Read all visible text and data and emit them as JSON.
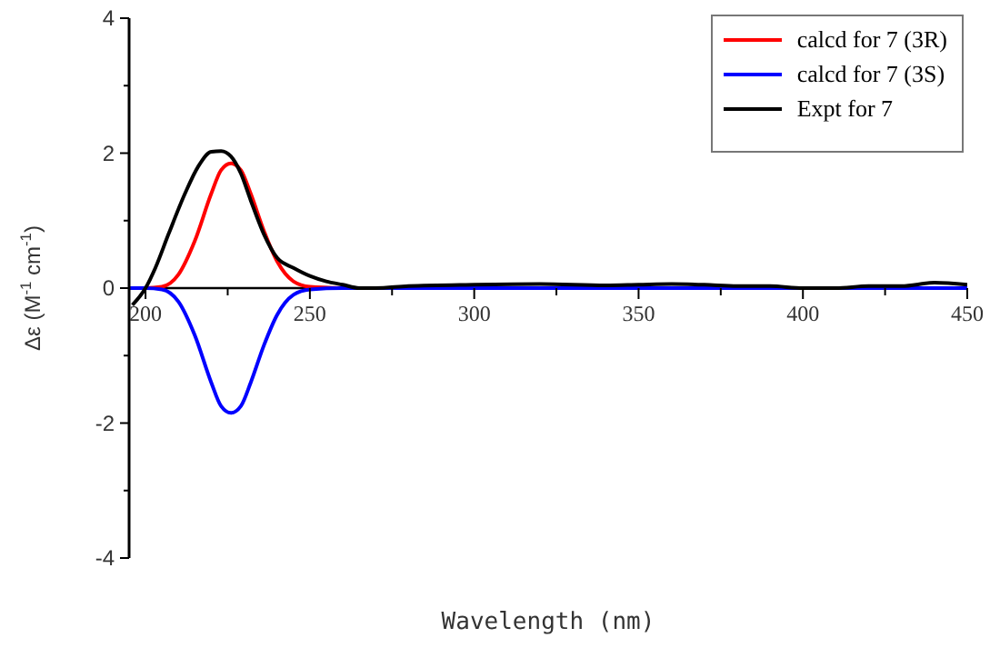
{
  "chart_data": {
    "type": "line",
    "xlabel": "Wavelength (nm)",
    "ylabel": "Δε (M$^{-1}$ cm$^{-1}$)",
    "xlim": [
      195,
      450
    ],
    "xticks": [
      200,
      {
        "value": 225,
        "label": null
      },
      250,
      {
        "value": 275,
        "label": null
      },
      300,
      {
        "value": 325,
        "label": null
      },
      350,
      {
        "value": 375,
        "label": null
      },
      400,
      {
        "value": 425,
        "label": null
      },
      450
    ],
    "ylim": [
      -4,
      4
    ],
    "yticks": [
      -4,
      {
        "value": -3,
        "label": null
      },
      -2,
      {
        "value": -1,
        "label": null
      },
      0,
      {
        "value": 1,
        "label": null
      },
      2,
      {
        "value": 3,
        "label": null
      },
      4
    ],
    "legend": "top right",
    "grid": false,
    "marker": "none",
    "line_style": "solid",
    "series": [
      {
        "name": "calcd for 7 (3R)",
        "color": "#ff0000",
        "x": [
          195,
          200,
          205,
          210,
          215,
          220,
          223,
          226,
          229,
          232,
          236,
          240,
          245,
          250,
          260
        ],
        "values": [
          0,
          0,
          0.02,
          0.2,
          0.7,
          1.4,
          1.75,
          1.85,
          1.75,
          1.4,
          0.85,
          0.4,
          0.1,
          0.02,
          0
        ]
      },
      {
        "name": "calcd for 7 (3S)",
        "color": "#0000ff",
        "x": [
          195,
          200,
          205,
          210,
          215,
          220,
          223,
          226,
          229,
          232,
          236,
          240,
          245,
          250,
          260,
          270,
          300,
          350,
          400,
          450
        ],
        "values": [
          0,
          0,
          -0.02,
          -0.2,
          -0.7,
          -1.4,
          -1.75,
          -1.85,
          -1.75,
          -1.4,
          -0.85,
          -0.4,
          -0.1,
          -0.02,
          0,
          0,
          0,
          0,
          0,
          0
        ]
      },
      {
        "name": "Expt for 7",
        "color": "#000000",
        "x": [
          196,
          200,
          203,
          207,
          212,
          216,
          220,
          223,
          226,
          229,
          232,
          236,
          240,
          245,
          250,
          255,
          260,
          265,
          270,
          280,
          300,
          320,
          340,
          350,
          360,
          370,
          380,
          390,
          400,
          410,
          420,
          430,
          440,
          450
        ],
        "values": [
          -0.25,
          0,
          0.3,
          0.8,
          1.4,
          1.8,
          2.02,
          2.03,
          1.95,
          1.7,
          1.3,
          0.8,
          0.45,
          0.3,
          0.18,
          0.1,
          0.05,
          0,
          0,
          0.03,
          0.05,
          0.06,
          0.04,
          0.05,
          0.06,
          0.05,
          0.03,
          0.03,
          0,
          0,
          0.03,
          0.03,
          0.08,
          0.05
        ]
      }
    ]
  }
}
